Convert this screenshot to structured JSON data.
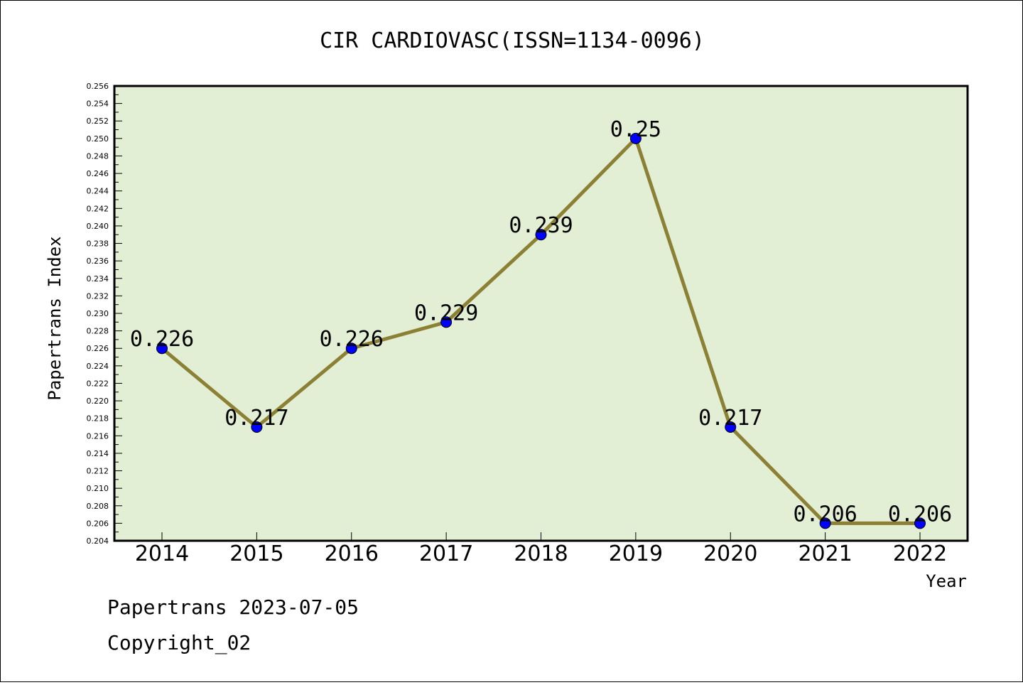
{
  "chart_data": {
    "type": "line",
    "title": "CIR CARDIOVASC(ISSN=1134-0096)",
    "xlabel": "Year",
    "ylabel": "Papertrans Index",
    "categories": [
      "2014",
      "2015",
      "2016",
      "2017",
      "2018",
      "2019",
      "2020",
      "2021",
      "2022"
    ],
    "values": [
      0.226,
      0.217,
      0.226,
      0.229,
      0.239,
      0.25,
      0.217,
      0.206,
      0.206
    ],
    "data_labels": [
      "0.226",
      "0.217",
      "0.226",
      "0.229",
      "0.239",
      "0.25",
      "0.217",
      "0.206",
      "0.206"
    ],
    "ylim": [
      0.204,
      0.256
    ],
    "ytick_step": 0.002,
    "grid": false,
    "colors": {
      "plot_background": "#e2efd5",
      "line": "#8c8035",
      "marker": "#0000ff"
    }
  },
  "footer": {
    "line1": "Papertrans 2023-07-05",
    "line2": "Copyright_02"
  }
}
